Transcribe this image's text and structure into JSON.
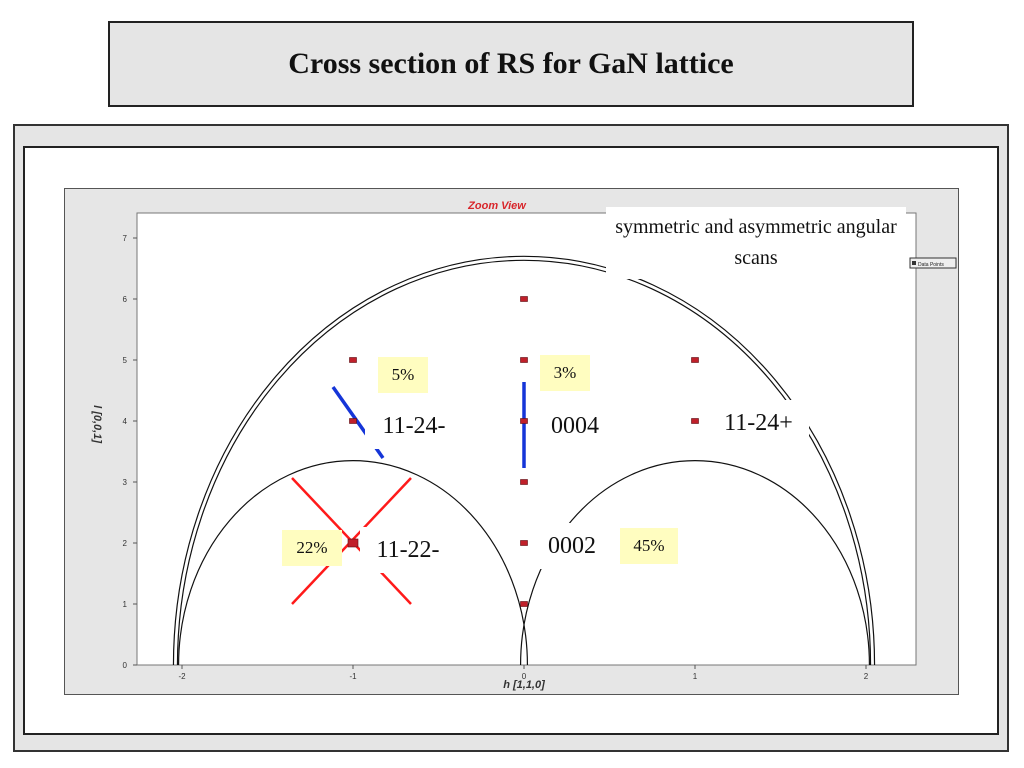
{
  "page_title": "Cross section of RS for GaN lattice",
  "colors": {
    "title_bg": "#e5e5e5",
    "frame_bg": "#e5e5e5",
    "plot_bg": "#e6e6e6",
    "zoom_title": "#d8262b",
    "reflection": "#c0202a",
    "blue_marker": "#1535d8",
    "red_cross": "#ff1a1a",
    "percent_bg": "#fffdc0"
  },
  "chart_data": {
    "type": "scatter",
    "title": "Zoom View",
    "xlabel": "h [1,1,0]",
    "ylabel": "l [0,0,1]",
    "xlim": [
      -2.05,
      2.05
    ],
    "ylim": [
      0,
      7.2
    ],
    "x_ticks": [
      -2,
      -1,
      0,
      1,
      2
    ],
    "y_ticks": [
      0,
      1,
      2,
      3,
      4,
      5,
      6,
      7
    ],
    "points": [
      {
        "x": 0,
        "y": 1
      },
      {
        "x": 0,
        "y": 2
      },
      {
        "x": 0,
        "y": 3
      },
      {
        "x": 0,
        "y": 4
      },
      {
        "x": 0,
        "y": 5
      },
      {
        "x": 0,
        "y": 6
      },
      {
        "x": -1,
        "y": 2
      },
      {
        "x": -1,
        "y": 4
      },
      {
        "x": -1,
        "y": 5
      },
      {
        "x": 1,
        "y": 4
      },
      {
        "x": 1,
        "y": 5
      }
    ],
    "outer_arc": {
      "center_x": 0,
      "radius_h": 2.05,
      "peak_l": 6.7
    },
    "inner_arcs": [
      {
        "center_x": -1,
        "radius_h": 1.02,
        "peak_l": 3.35
      },
      {
        "center_x": 1,
        "radius_h": 1.02,
        "peak_l": 3.35
      }
    ],
    "legend_text": "Data Points",
    "annotations": {
      "note": "symmetric and asymmetric angular scans",
      "labels": [
        {
          "text": "11-24-",
          "x": -1,
          "y": 4
        },
        {
          "text": "0004",
          "x": 0,
          "y": 4
        },
        {
          "text": "11-24+",
          "x": 1,
          "y": 4
        },
        {
          "text": "11-22-",
          "x": -1,
          "y": 2
        },
        {
          "text": "0002",
          "x": 0,
          "y": 2
        }
      ],
      "percentages": [
        {
          "text": "5%",
          "near": "11-24-"
        },
        {
          "text": "3%",
          "near": "0004"
        },
        {
          "text": "22%",
          "near": "11-22-"
        },
        {
          "text": "45%",
          "near": "0002"
        }
      ]
    }
  }
}
